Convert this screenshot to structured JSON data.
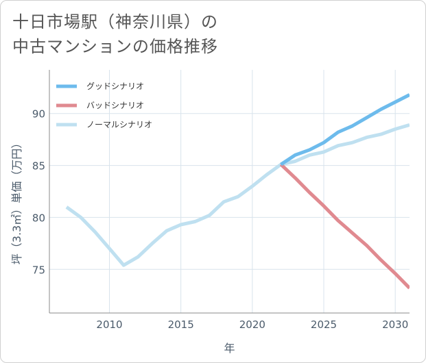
{
  "title": {
    "line1": "十日市場駅（神奈川県）の",
    "line2": "中古マンションの価格推移"
  },
  "chart_data": {
    "type": "line",
    "xlabel": "年",
    "ylabel": "坪（3.3㎡）単価（万円）",
    "xlim": [
      2005.8,
      2031
    ],
    "ylim": [
      70.8,
      94.2
    ],
    "xticks": [
      2010,
      2015,
      2020,
      2025,
      2030
    ],
    "yticks": [
      75,
      80,
      85,
      90
    ],
    "grid": true,
    "legend_position": "top-left",
    "series": [
      {
        "name": "グッドシナリオ",
        "color": "#6dbbec",
        "x": [
          2022,
          2023,
          2024,
          2025,
          2026,
          2027,
          2028,
          2029,
          2030,
          2031
        ],
        "y": [
          85.1,
          86.0,
          86.5,
          87.2,
          88.2,
          88.8,
          89.6,
          90.4,
          91.1,
          91.8
        ]
      },
      {
        "name": "バッドシナリオ",
        "color": "#e08a90",
        "x": [
          2022,
          2023,
          2024,
          2025,
          2026,
          2027,
          2028,
          2029,
          2030,
          2031
        ],
        "y": [
          85.1,
          83.8,
          82.4,
          81.1,
          79.7,
          78.5,
          77.3,
          75.9,
          74.6,
          73.2
        ]
      },
      {
        "name": "ノーマルシナリオ",
        "color": "#bfe0f0",
        "x": [
          2007,
          2008,
          2009,
          2010,
          2011,
          2012,
          2013,
          2014,
          2015,
          2016,
          2017,
          2018,
          2019,
          2020,
          2021,
          2022,
          2023,
          2024,
          2025,
          2026,
          2027,
          2028,
          2029,
          2030,
          2031
        ],
        "y": [
          81.0,
          80.0,
          78.6,
          77.0,
          75.4,
          76.2,
          77.5,
          78.7,
          79.3,
          79.6,
          80.2,
          81.5,
          82.0,
          83.0,
          84.1,
          85.1,
          85.4,
          86.0,
          86.3,
          86.9,
          87.2,
          87.7,
          88.0,
          88.5,
          88.9
        ]
      }
    ]
  }
}
